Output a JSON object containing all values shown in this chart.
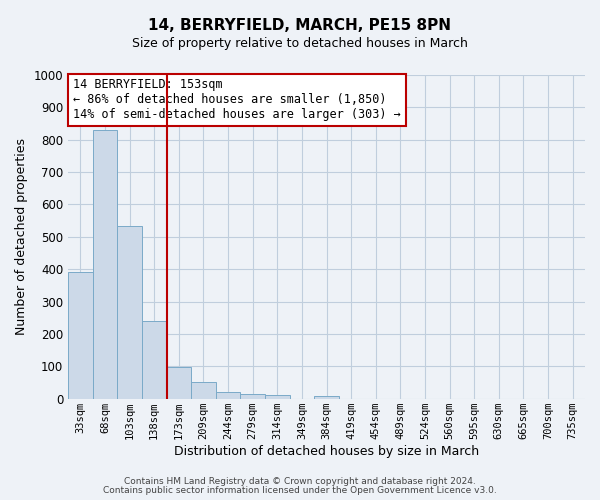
{
  "title": "14, BERRYFIELD, MARCH, PE15 8PN",
  "subtitle": "Size of property relative to detached houses in March",
  "xlabel": "Distribution of detached houses by size in March",
  "ylabel": "Number of detached properties",
  "bar_labels": [
    "33sqm",
    "68sqm",
    "103sqm",
    "138sqm",
    "173sqm",
    "209sqm",
    "244sqm",
    "279sqm",
    "314sqm",
    "349sqm",
    "384sqm",
    "419sqm",
    "454sqm",
    "489sqm",
    "524sqm",
    "560sqm",
    "595sqm",
    "630sqm",
    "665sqm",
    "700sqm",
    "735sqm"
  ],
  "bar_values": [
    390,
    830,
    535,
    240,
    97,
    52,
    22,
    15,
    10,
    0,
    8,
    0,
    0,
    0,
    0,
    0,
    0,
    0,
    0,
    0,
    0
  ],
  "bar_color": "#ccd9e8",
  "bar_edge_color": "#7aaac8",
  "ylim": [
    0,
    1000
  ],
  "yticks": [
    0,
    100,
    200,
    300,
    400,
    500,
    600,
    700,
    800,
    900,
    1000
  ],
  "vline_x": 3.5,
  "vline_color": "#bb0000",
  "annotation_title": "14 BERRYFIELD: 153sqm",
  "annotation_line1": "← 86% of detached houses are smaller (1,850)",
  "annotation_line2": "14% of semi-detached houses are larger (303) →",
  "annotation_box_color": "#ffffff",
  "annotation_box_edge": "#bb0000",
  "footer1": "Contains HM Land Registry data © Crown copyright and database right 2024.",
  "footer2": "Contains public sector information licensed under the Open Government Licence v3.0.",
  "background_color": "#eef2f7",
  "plot_bg_color": "#eef2f7",
  "grid_color": "#c0cedd"
}
